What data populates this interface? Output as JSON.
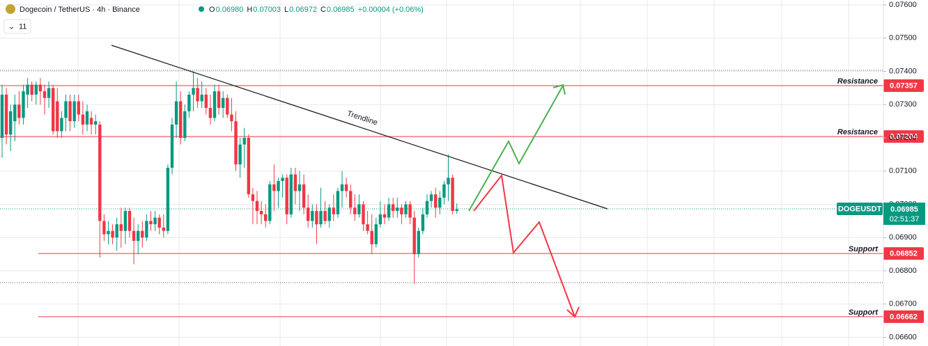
{
  "chart_data": {
    "type": "candlestick",
    "title": "Dogecoin / TetherUS · 4h · Binance",
    "ohlc_header": [
      {
        "key": "O",
        "value": "0.06980"
      },
      {
        "key": "H",
        "value": "0.07003"
      },
      {
        "key": "L",
        "value": "0.06972"
      },
      {
        "key": "C",
        "value": "0.06985"
      }
    ],
    "change": "+0.00004 (+0.06%)",
    "indicator_count": "11",
    "up_color": "#089981",
    "down_color": "#f23645",
    "ylim": [
      0.065738,
      0.076147
    ],
    "yticks": [
      {
        "value": 0.076,
        "label": "0.07600"
      },
      {
        "value": 0.075,
        "label": "0.07500"
      },
      {
        "value": 0.074,
        "label": "0.07400"
      },
      {
        "value": 0.073,
        "label": "0.07300"
      },
      {
        "value": 0.072,
        "label": "0.07200"
      },
      {
        "value": 0.071,
        "label": "0.07100"
      },
      {
        "value": 0.07,
        "label": "0.07000"
      },
      {
        "value": 0.069,
        "label": "0.06900"
      },
      {
        "value": 0.068,
        "label": "0.06800"
      },
      {
        "value": 0.067,
        "label": "0.06700"
      },
      {
        "value": 0.066,
        "label": "0.06600"
      }
    ],
    "grid": true,
    "open": [
      0.072,
      0.0733,
      0.0721,
      0.0725,
      0.073,
      0.0726,
      0.0733,
      0.0736,
      0.0733,
      0.0736,
      0.0734,
      0.0732,
      0.0735,
      0.0731,
      0.0722,
      0.0726,
      0.0731,
      0.0725,
      0.0731,
      0.0727,
      0.0724,
      0.0726,
      0.0724,
      0.0724,
      0.0695,
      0.0691,
      0.0692,
      0.069,
      0.0694,
      0.0692,
      0.0698,
      0.0692,
      0.0689,
      0.0692,
      0.069,
      0.0695,
      0.0694,
      0.0696,
      0.0693,
      0.0692,
      0.0711,
      0.0724,
      0.0731,
      0.072,
      0.0728,
      0.0733,
      0.0735,
      0.0731,
      0.0733,
      0.0729,
      0.0726,
      0.0734,
      0.0729,
      0.0732,
      0.0727,
      0.0725,
      0.0712,
      0.0718,
      0.072,
      0.0703,
      0.0701,
      0.0698,
      0.0697,
      0.0695,
      0.0706,
      0.0704,
      0.0707,
      0.0708,
      0.0697,
      0.0709,
      0.0704,
      0.0706,
      0.0699,
      0.0695,
      0.0698,
      0.0694,
      0.0698,
      0.0695,
      0.0699,
      0.0697,
      0.0704,
      0.0706,
      0.0704,
      0.0699,
      0.0697,
      0.07,
      0.0694,
      0.0692,
      0.0688,
      0.0694,
      0.0697,
      0.0696,
      0.07,
      0.0698,
      0.0699,
      0.0697,
      0.07,
      0.0696,
      0.0685,
      0.0692,
      0.0697,
      0.0701,
      0.0703,
      0.0699,
      0.0702,
      0.0706,
      0.0708,
      0.0698
    ],
    "high": [
      0.0736,
      0.0735,
      0.073,
      0.0733,
      0.0734,
      0.0736,
      0.0738,
      0.0737,
      0.0737,
      0.0738,
      0.0736,
      0.0737,
      0.0736,
      0.0735,
      0.0728,
      0.0733,
      0.0733,
      0.0733,
      0.0733,
      0.0731,
      0.073,
      0.0728,
      0.0727,
      0.0725,
      0.0697,
      0.0695,
      0.0694,
      0.0696,
      0.0699,
      0.0699,
      0.0699,
      0.0696,
      0.0694,
      0.0695,
      0.0697,
      0.0698,
      0.0698,
      0.0697,
      0.0697,
      0.0712,
      0.0726,
      0.0737,
      0.0734,
      0.073,
      0.0734,
      0.074,
      0.0738,
      0.0737,
      0.0735,
      0.0733,
      0.0736,
      0.0736,
      0.0734,
      0.0733,
      0.0732,
      0.0728,
      0.072,
      0.0723,
      0.0721,
      0.0705,
      0.0704,
      0.0701,
      0.07,
      0.0707,
      0.0712,
      0.0708,
      0.0709,
      0.0709,
      0.0711,
      0.0711,
      0.071,
      0.0709,
      0.0703,
      0.07,
      0.07,
      0.0705,
      0.0701,
      0.07,
      0.0703,
      0.0705,
      0.071,
      0.0708,
      0.0706,
      0.0703,
      0.0703,
      0.0701,
      0.0698,
      0.0697,
      0.0696,
      0.0701,
      0.07,
      0.0702,
      0.0702,
      0.0702,
      0.07,
      0.0701,
      0.0701,
      0.0698,
      0.0693,
      0.0699,
      0.0703,
      0.0704,
      0.0705,
      0.0704,
      0.0707,
      0.0715,
      0.0709,
      0.07003
    ],
    "low": [
      0.0714,
      0.0718,
      0.0716,
      0.0719,
      0.0724,
      0.0724,
      0.0729,
      0.0731,
      0.073,
      0.073,
      0.0727,
      0.0729,
      0.0721,
      0.072,
      0.072,
      0.0722,
      0.0722,
      0.0723,
      0.0725,
      0.0721,
      0.0722,
      0.0721,
      0.0721,
      0.0684,
      0.0689,
      0.0688,
      0.0688,
      0.0686,
      0.0687,
      0.0688,
      0.069,
      0.0682,
      0.0685,
      0.0687,
      0.0689,
      0.0692,
      0.0692,
      0.0691,
      0.069,
      0.0691,
      0.0709,
      0.072,
      0.0718,
      0.0719,
      0.0726,
      0.0728,
      0.0729,
      0.0729,
      0.0727,
      0.0724,
      0.0725,
      0.0727,
      0.0726,
      0.0726,
      0.0722,
      0.071,
      0.0708,
      0.0711,
      0.0702,
      0.0694,
      0.0694,
      0.0694,
      0.0693,
      0.0694,
      0.0698,
      0.0699,
      0.0702,
      0.0694,
      0.0696,
      0.07,
      0.0698,
      0.0697,
      0.0693,
      0.0693,
      0.0688,
      0.0693,
      0.0694,
      0.0693,
      0.0695,
      0.0696,
      0.0699,
      0.0702,
      0.0697,
      0.0695,
      0.0696,
      0.0692,
      0.0691,
      0.0685,
      0.0687,
      0.0693,
      0.0694,
      0.0695,
      0.0696,
      0.0696,
      0.0694,
      0.0696,
      0.0694,
      0.0676,
      0.0684,
      0.0691,
      0.0696,
      0.0699,
      0.0696,
      0.0697,
      0.07,
      0.0701,
      0.0697,
      0.06972
    ],
    "close": [
      0.0733,
      0.0721,
      0.0728,
      0.073,
      0.0726,
      0.0734,
      0.0736,
      0.0733,
      0.0736,
      0.0734,
      0.0732,
      0.0735,
      0.0722,
      0.0722,
      0.0726,
      0.0731,
      0.0725,
      0.0731,
      0.0727,
      0.0724,
      0.0728,
      0.0724,
      0.0725,
      0.0695,
      0.0691,
      0.0692,
      0.069,
      0.0694,
      0.0692,
      0.0698,
      0.0692,
      0.0689,
      0.0692,
      0.069,
      0.0695,
      0.0694,
      0.0696,
      0.0693,
      0.0692,
      0.0711,
      0.0724,
      0.0731,
      0.072,
      0.0728,
      0.0733,
      0.0735,
      0.0731,
      0.0733,
      0.0729,
      0.0726,
      0.0734,
      0.0729,
      0.0732,
      0.0727,
      0.0725,
      0.0712,
      0.0718,
      0.072,
      0.0703,
      0.0701,
      0.0698,
      0.0697,
      0.0695,
      0.0706,
      0.0704,
      0.0707,
      0.0708,
      0.0697,
      0.0709,
      0.0704,
      0.0706,
      0.0699,
      0.0695,
      0.0698,
      0.0694,
      0.0698,
      0.0695,
      0.0699,
      0.0697,
      0.0704,
      0.0706,
      0.0704,
      0.0699,
      0.0697,
      0.07,
      0.0694,
      0.0692,
      0.0688,
      0.0694,
      0.0697,
      0.0696,
      0.07,
      0.0698,
      0.0699,
      0.0697,
      0.07,
      0.0696,
      0.0685,
      0.0692,
      0.0697,
      0.0701,
      0.0703,
      0.0699,
      0.0702,
      0.0706,
      0.0708,
      0.0698,
      0.06985
    ],
    "levels": [
      {
        "name": "Resistance",
        "value": 0.07357,
        "label": "0.07357"
      },
      {
        "name": "Resistance",
        "value": 0.07204,
        "label": "0.07204"
      },
      {
        "name": "Support",
        "value": 0.06852,
        "label": "0.06852"
      },
      {
        "name": "Support",
        "value": 0.06662,
        "label": "0.06662"
      }
    ],
    "level_color": "#f23645",
    "last_price": {
      "symbol": "DOGEUSDT",
      "value": 0.06985,
      "label": "0.06985",
      "countdown": "02:51:37"
    },
    "trendline_label": "Trendline"
  }
}
